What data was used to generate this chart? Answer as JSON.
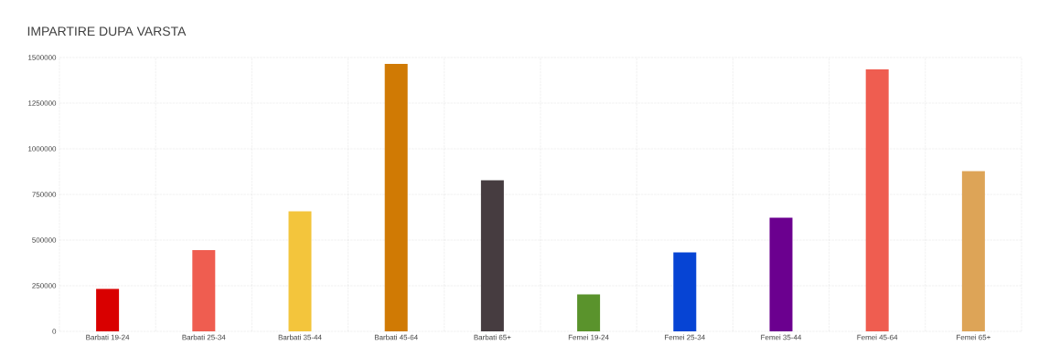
{
  "chart_data": {
    "type": "bar",
    "title": "IMPARTIRE DUPA VARSTA",
    "categories": [
      "Barbati 19-24",
      "Barbati 25-34",
      "Barbati 35-44",
      "Barbati 45-64",
      "Barbati 65+",
      "Femei 19-24",
      "Femei 25-34",
      "Femei 35-44",
      "Femei 45-64",
      "Femei 65+"
    ],
    "values": [
      233000,
      445000,
      658000,
      1465000,
      827000,
      202000,
      432000,
      622000,
      1435000,
      877000
    ],
    "colors": [
      "#d90000",
      "#ef5d50",
      "#f3c53c",
      "#d07a04",
      "#463c40",
      "#5a932c",
      "#0644d4",
      "#6b008f",
      "#ef5d50",
      "#dda457"
    ],
    "ylim": [
      0,
      1500000
    ],
    "yticks": [
      0,
      250000,
      500000,
      750000,
      1000000,
      1250000,
      1500000
    ],
    "grid": true
  }
}
